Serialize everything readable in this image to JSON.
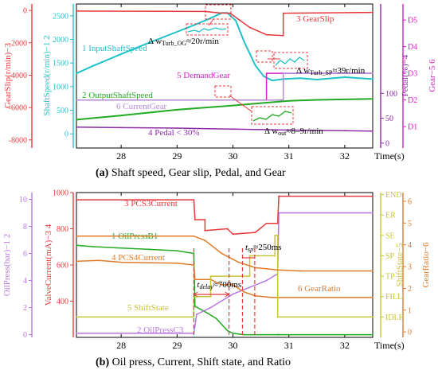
{
  "chart_data": [
    {
      "type": "line",
      "x_range": [
        27.2,
        32.5
      ],
      "x_ticks": [
        28,
        29,
        30,
        31,
        32
      ],
      "xlabel": "Time(s)",
      "caption_bold": "(a)",
      "caption_text": " Shaft speed, Gear slip, Pedal, and Gear",
      "axes": [
        {
          "label": "GearSlip(r/min)−3",
          "color": "#e8393c",
          "range": [
            -8500,
            400
          ],
          "ticks": [
            0,
            -2000,
            -4000,
            -6000,
            -8000
          ]
        },
        {
          "label": "ShaftSpeed(r/min)−1 2",
          "color": "#1fc2c8",
          "range": [
            -300,
            2750
          ],
          "ticks": [
            0,
            500,
            1000,
            1500,
            2000,
            2500
          ]
        },
        {
          "label": "Pedal(%)−4",
          "color": "#8d2aa6",
          "range": [
            -10,
            280
          ],
          "ticks": [
            0,
            50,
            100
          ]
        },
        {
          "label": "Gear−5 6",
          "color": "#d81fc8",
          "range": [
            0.2,
            5.6
          ],
          "ticks": [
            1,
            2,
            3,
            4,
            5
          ],
          "tick_labels": [
            "D1",
            "D2",
            "D3",
            "D4",
            "D5"
          ]
        }
      ],
      "series": [
        {
          "name": "1 InputShaftSpeed",
          "axis": 1,
          "color": "#1fc2c8",
          "x": [
            27.2,
            27.5,
            28.0,
            28.5,
            29.0,
            29.3,
            29.6,
            29.8,
            29.9,
            30.05,
            30.2,
            30.4,
            30.55,
            30.7,
            30.9,
            31.2,
            31.5,
            32.0,
            32.5
          ],
          "y": [
            1280,
            1440,
            1690,
            1930,
            2160,
            2300,
            2450,
            2560,
            2560,
            2400,
            1950,
            1450,
            1220,
            1130,
            1160,
            1180,
            1150,
            1200,
            1160
          ]
        },
        {
          "name": "2 OutputShaftSpeed",
          "axis": 1,
          "color": "#22aa22",
          "x": [
            27.2,
            28.0,
            29.0,
            30.0,
            30.5,
            31.0,
            31.5,
            32.0,
            32.5
          ],
          "y": [
            300,
            390,
            510,
            600,
            650,
            700,
            720,
            730,
            740
          ]
        },
        {
          "name": "3 GearSlip",
          "axis": 0,
          "color": "#e8393c",
          "x": [
            27.2,
            29.5,
            29.75,
            29.95,
            30.3,
            30.6,
            30.9,
            30.9,
            32.5
          ],
          "y": [
            -40,
            -60,
            -150,
            -170,
            -1050,
            -1500,
            -1550,
            -170,
            -120
          ]
        },
        {
          "name": "4 Pedal < 30%",
          "axis": 2,
          "color": "#8d2aa6",
          "x": [
            27.2,
            28.0,
            29.0,
            30.0,
            31.0,
            32.0,
            32.5
          ],
          "y": [
            32,
            31,
            30,
            28,
            26,
            25,
            24
          ]
        },
        {
          "name": "5 DemandGear",
          "axis": 3,
          "color": "#d81fc8",
          "x": [
            27.2,
            30.6,
            30.6,
            32.5
          ],
          "y": [
            2,
            2,
            3,
            3
          ]
        },
        {
          "name": "6 CurrentGear",
          "axis": 3,
          "color": "#b58ad8",
          "x": [
            27.2,
            30.9,
            30.9,
            32.5
          ],
          "y": [
            2,
            2,
            3,
            3
          ]
        }
      ],
      "annotations": [
        "Δ w",
        "Turb_OG",
        "≈20r/min",
        "Δ w",
        "Turb_SP",
        "≈39r/min",
        "Δ w",
        "out",
        "≈8–9r/min"
      ]
    },
    {
      "type": "line",
      "x_range": [
        27.2,
        32.5
      ],
      "x_ticks": [
        28,
        29,
        30,
        31,
        32
      ],
      "xlabel": "Time(s)",
      "caption_bold": "(b)",
      "caption_text": " Oil press, Current, Shift state, and Ratio",
      "axes": [
        {
          "label": "OilPress(bar)−1 2",
          "color": "#b777e0",
          "range": [
            -0.2,
            10.5
          ],
          "ticks": [
            0,
            2,
            4,
            6,
            8,
            10
          ]
        },
        {
          "label": "ValveCurrent(mA)−3 4",
          "color": "#e8393c",
          "range": [
            200,
            1000
          ],
          "ticks": [
            400,
            600,
            800,
            1000
          ]
        },
        {
          "label": "ShiftState−5",
          "color": "#c8c43a",
          "range": [
            0,
            7.1
          ],
          "ticks": [
            1,
            2,
            3,
            4,
            5,
            6,
            7
          ],
          "tick_labels": [
            "IDLE",
            "FILL",
            "TP",
            "SP",
            "SE",
            "ER",
            "END"
          ]
        },
        {
          "label": "GearRatio−6",
          "color": "#e07b2a",
          "range": [
            -0.25,
            6.4
          ],
          "ticks": [
            0,
            1,
            2,
            3,
            4,
            5,
            6
          ]
        }
      ],
      "series": [
        {
          "name": "1 OilPressB1",
          "axis": 0,
          "color": "#22aa22",
          "x": [
            27.2,
            27.5,
            28.0,
            28.5,
            29.0,
            29.3,
            29.32,
            29.5,
            29.7,
            29.9,
            30.0,
            30.2,
            30.5,
            30.8,
            30.82,
            32.5
          ],
          "y": [
            6.6,
            6.5,
            6.4,
            6.3,
            6.2,
            6.0,
            2.1,
            1.7,
            1.2,
            0.3,
            0.1,
            0.0,
            0.0,
            0.0,
            0.0,
            0.0
          ]
        },
        {
          "name": "2 OilPressC3",
          "axis": 0,
          "color": "#b777e0",
          "x": [
            27.2,
            29.3,
            29.35,
            29.6,
            29.8,
            30.0,
            30.3,
            30.6,
            30.8,
            30.82,
            32.5
          ],
          "y": [
            0.1,
            0.1,
            1.5,
            2.0,
            2.5,
            3.0,
            3.5,
            4.0,
            4.5,
            9.0,
            9.0
          ]
        },
        {
          "name": "3 PCS3Current",
          "axis": 1,
          "color": "#e8393c",
          "x": [
            27.2,
            29.3,
            29.32,
            29.5,
            29.5,
            29.9,
            30.0,
            30.4,
            30.6,
            30.8,
            30.82,
            32.5
          ],
          "y": [
            960,
            960,
            850,
            850,
            790,
            800,
            770,
            780,
            830,
            830,
            980,
            980
          ]
        },
        {
          "name": "4 PCS4Current",
          "axis": 1,
          "color": "#e07b2a",
          "x": [
            27.2,
            27.6,
            28.0,
            29.0,
            29.3,
            29.32,
            29.6,
            29.8,
            30.0,
            30.2,
            30.4,
            30.7,
            31.0,
            32.5
          ],
          "y": [
            620,
            625,
            615,
            610,
            600,
            520,
            520,
            490,
            490,
            450,
            430,
            420,
            420,
            420
          ]
        },
        {
          "name": "5 ShiftState",
          "axis": 2,
          "color": "#c8c43a",
          "x": [
            27.2,
            29.3,
            29.3,
            29.6,
            29.6,
            30.3,
            30.3,
            30.75,
            30.75,
            30.8,
            30.8,
            32.5
          ],
          "y": [
            1,
            1,
            2,
            2,
            3,
            3,
            4,
            4,
            5,
            5,
            1,
            1
          ]
        },
        {
          "name": "6 GearRatio",
          "axis": 3,
          "color": "#e07b2a",
          "x": [
            27.2,
            29.3,
            29.5,
            29.8,
            30.1,
            30.4,
            30.8,
            31.2,
            32.5
          ],
          "y": [
            4.4,
            4.4,
            4.2,
            3.6,
            3.2,
            2.95,
            2.85,
            2.8,
            2.8
          ]
        }
      ],
      "annotations": [
        "t",
        "delay",
        "≈700ms",
        "t",
        "sp",
        "≈250ms"
      ]
    }
  ]
}
